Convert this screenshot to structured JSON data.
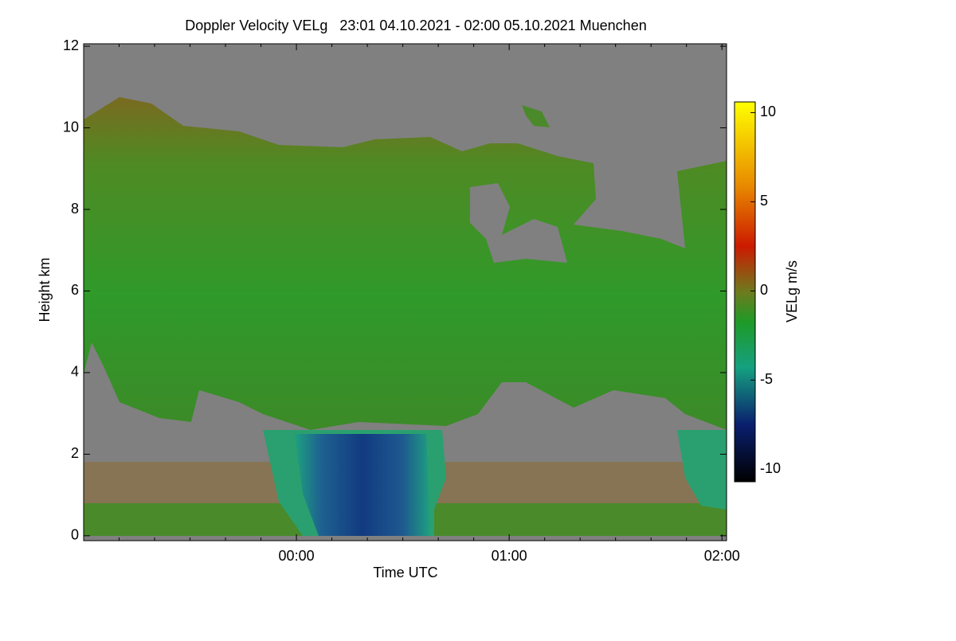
{
  "chart_data": {
    "type": "heatmap",
    "title": "Doppler Velocity VELg   23:01 04.10.2021 - 02:00 05.10.2021 Muenchen",
    "x_label": "Time UTC",
    "y_label": "Height km",
    "xlim": [
      0,
      181.3
    ],
    "xticks": [
      {
        "value": 60,
        "label": "00:00"
      },
      {
        "value": 120,
        "label": "01:00"
      },
      {
        "value": 180,
        "label": "02:00"
      }
    ],
    "xminorticks": [
      10,
      20,
      30,
      40,
      50,
      70,
      80,
      90,
      100,
      110,
      130,
      140,
      150,
      160,
      170
    ],
    "ylim": [
      -0.12,
      12.06
    ],
    "yticks": [
      0,
      2,
      4,
      6,
      8,
      10,
      12
    ],
    "colorbar": {
      "label": "VELg m/s",
      "clim": [
        -10.7,
        10.6
      ],
      "ticks": [
        -10,
        -5,
        0,
        5,
        10
      ]
    }
  }
}
